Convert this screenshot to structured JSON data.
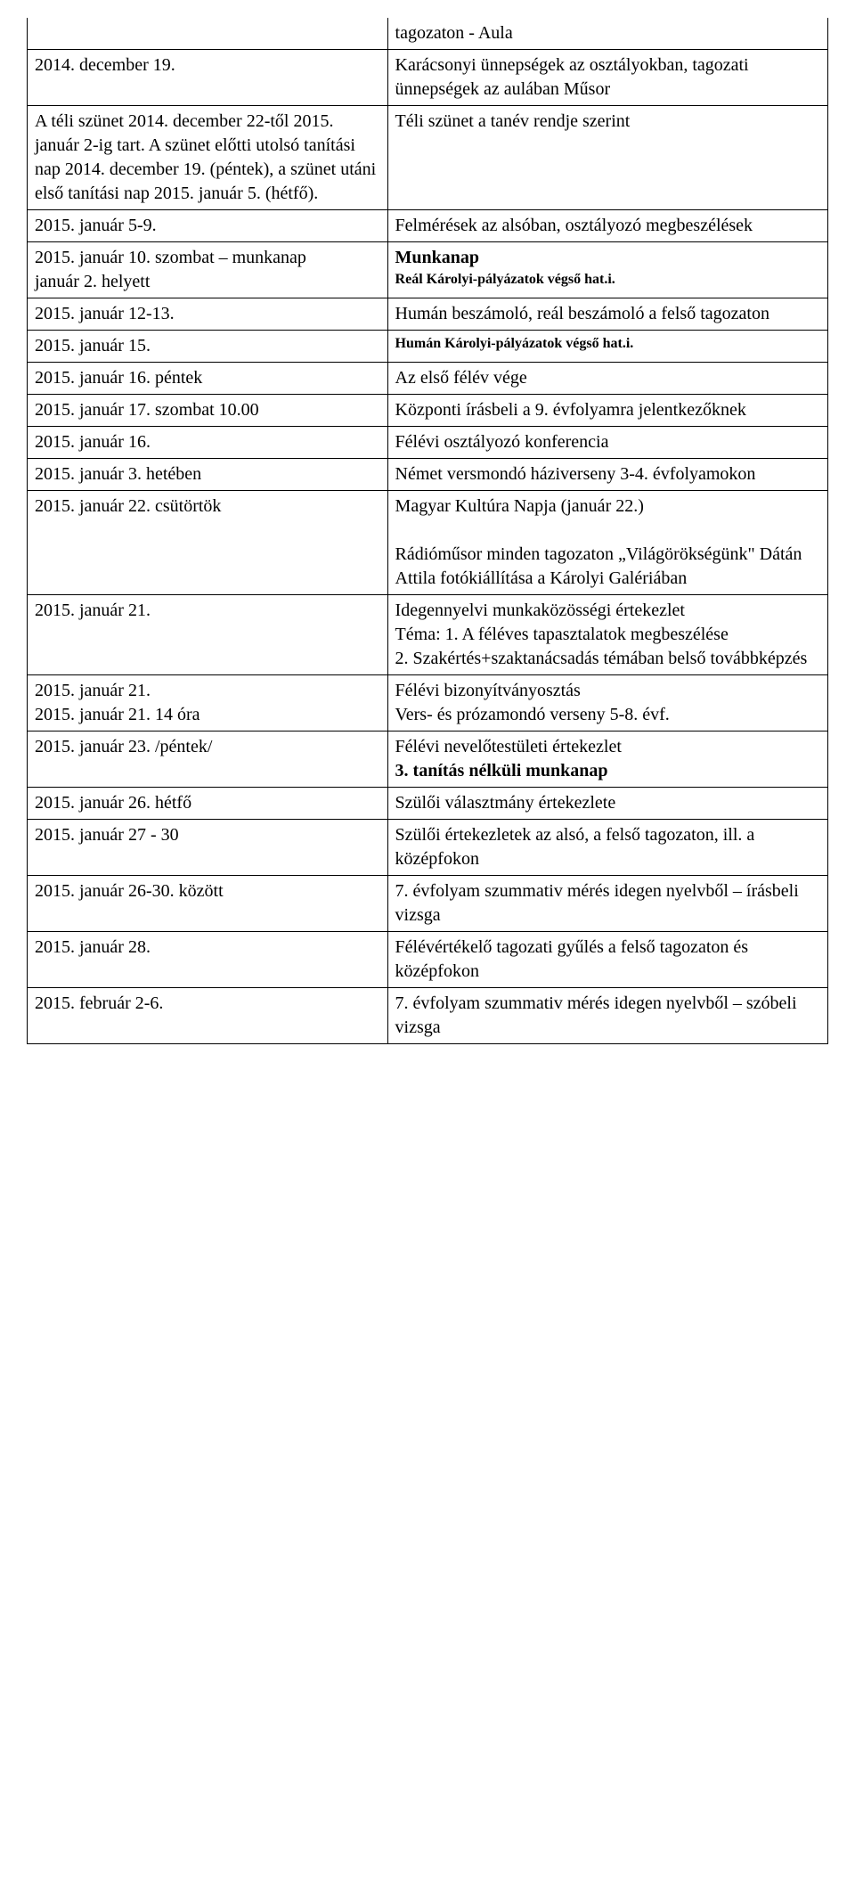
{
  "rows": [
    {
      "left": "",
      "right": "tagozaton - Aula",
      "topless": true
    },
    {
      "left": "2014. december 19.",
      "right": "Karácsonyi ünnepségek az osztályokban, tagozati ünnepségek az aulában Műsor"
    },
    {
      "left": "A téli szünet 2014. december 22-től 2015. január 2-ig tart. A szünet előtti utolsó tanítási nap 2014. december 19. (péntek), a szünet utáni első tanítási nap 2015. január 5. (hétfő).",
      "right": "Téli szünet a tanév rendje szerint"
    },
    {
      "left": "2015. január 5-9.",
      "right": "Felmérések az alsóban, osztályozó megbeszélések"
    },
    {
      "left": "2015. január 10. szombat – munkanap\njanuár 2. helyett",
      "right_segments": [
        {
          "text": "Munkanap",
          "bold": true
        },
        {
          "text": "Reál Károlyi-pályázatok végső hat.i.",
          "small": true,
          "bold": true
        }
      ]
    },
    {
      "left": "2015. január 12-13.",
      "right": "Humán beszámoló, reál beszámoló a felső tagozaton"
    },
    {
      "left": "2015. január 15.",
      "right_segments": [
        {
          "text": "Humán Károlyi-pályázatok végső hat.i.",
          "small": true,
          "bold": true
        }
      ]
    },
    {
      "left": "2015. január 16. péntek",
      "right": "Az első félév vége"
    },
    {
      "left": "2015. január 17. szombat 10.00",
      "right": "Központi írásbeli a 9. évfolyamra jelentkezőknek"
    },
    {
      "left": "2015. január 16.",
      "right": "Félévi osztályozó konferencia"
    },
    {
      "left": "2015. január 3. hetében",
      "right": "Német versmondó háziverseny 3-4. évfolyamokon"
    },
    {
      "left": "2015. január 22. csütörtök",
      "right": "Magyar Kultúra Napja (január 22.)\n\nRádióműsor minden tagozaton „Világörökségünk\" Dátán Attila fotókiállítása a Károlyi Galériában"
    },
    {
      "left": "2015. január 21.",
      "right": "Idegennyelvi munkaközösségi értekezlet\nTéma: 1. A féléves tapasztalatok megbeszélése\n2. Szakértés+szaktanácsadás témában belső továbbképzés"
    },
    {
      "left": "2015. január 21.\n2015. január 21. 14 óra",
      "right": "Félévi bizonyítványosztás\nVers- és prózamondó verseny 5-8. évf."
    },
    {
      "left": "2015. január 23. /péntek/",
      "right_segments": [
        {
          "text": "Félévi nevelőtestületi értekezlet"
        },
        {
          "text": "3. tanítás nélküli munkanap",
          "bold": true
        }
      ]
    },
    {
      "left": "2015. január 26. hétfő",
      "right": "Szülői választmány értekezlete"
    },
    {
      "left": "2015. január 27 - 30",
      "right": "Szülői értekezletek az alsó, a felső tagozaton, ill. a középfokon"
    },
    {
      "left": "2015. január 26-30. között",
      "right": "7. évfolyam szummativ mérés idegen nyelvből – írásbeli vizsga"
    },
    {
      "left": "2015. január 28.",
      "right": "Félévértékelő tagozati gyűlés a felső tagozaton és középfokon"
    },
    {
      "left": "2015. február 2-6.",
      "right": "7. évfolyam szummativ mérés idegen nyelvből – szóbeli vizsga"
    }
  ]
}
